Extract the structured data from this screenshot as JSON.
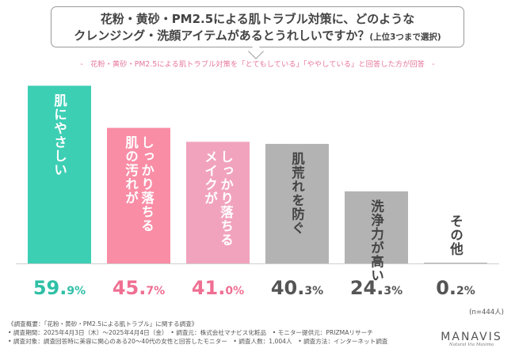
{
  "title": {
    "line1": "花粉・黄砂・PM2.5による肌トラブル対策に、どのような",
    "line2": "クレンジング・洗顔アイテムがあるとうれしいですか？",
    "note": "(上位3つまで選択)"
  },
  "subtitle": "-　花粉・黄砂・PM2.5による肌トラブル対策を「とてもしている」「ややしている」と回答した方が回答　-",
  "sample_note": "(n=444人)",
  "colors": {
    "teal": "#3dcfb4",
    "pink": "#f98da6",
    "light_pink": "#f1a3bd",
    "gray": "#b3b3b3",
    "value_teal": "#2fc0a6",
    "value_pink": "#ef6f92",
    "value_gray": "#555555"
  },
  "chart_data": {
    "type": "bar",
    "title": "花粉・黄砂・PM2.5による肌トラブル対策に、どのようなクレンジング・洗顔アイテムがあるとうれしいですか？(上位3つまで選択)",
    "categories": [
      "肌にやさしい",
      "肌の汚れがしっかり落ちる",
      "メイクがしっかり落ちる",
      "肌荒れを防ぐ",
      "洗浄力が高い",
      "その他"
    ],
    "values": [
      59.9,
      45.7,
      41.0,
      40.3,
      24.3,
      0.2
    ],
    "value_labels": [
      {
        "int": "59.",
        "dec": "9%"
      },
      {
        "int": "45.",
        "dec": "7%"
      },
      {
        "int": "41.",
        "dec": "0%"
      },
      {
        "int": "40.",
        "dec": "3%"
      },
      {
        "int": "24.",
        "dec": "3%"
      },
      {
        "int": "0.",
        "dec": "2%"
      }
    ],
    "bar_lines": [
      [
        "肌にやさしい"
      ],
      [
        "しっかり落ちる",
        "肌の汚れが"
      ],
      [
        "しっかり落ちる",
        "メイクが"
      ],
      [
        "肌荒れを防ぐ"
      ],
      [
        "洗浄力が高い"
      ],
      [
        "その他"
      ]
    ],
    "color_keys": [
      "teal",
      "pink",
      "light_pink",
      "gray",
      "gray",
      "gray"
    ],
    "value_color_keys": [
      "value_teal",
      "value_pink",
      "value_pink",
      "value_gray",
      "value_gray",
      "value_gray"
    ],
    "ylim": [
      0,
      60
    ],
    "unit": "%"
  },
  "footer": {
    "lines": [
      "《調査概要：「花粉・黄砂・PM2.5による肌トラブル」に関する調査》",
      "• 調査期間：2025年4月3日（木）～2025年4月4日（金）　• 調査元：株式会社マナビス化粧品　• モニター提供元：PRIZMAリサーチ",
      "• 調査対象：調査回答時に美容に関心のある20～40代の女性と回答したモニター　• 調査人数：1,004人　• 調査方法：インターネット調査"
    ]
  },
  "brand": {
    "name": "MANAVIS",
    "tagline": "Natural Via Maxima"
  }
}
